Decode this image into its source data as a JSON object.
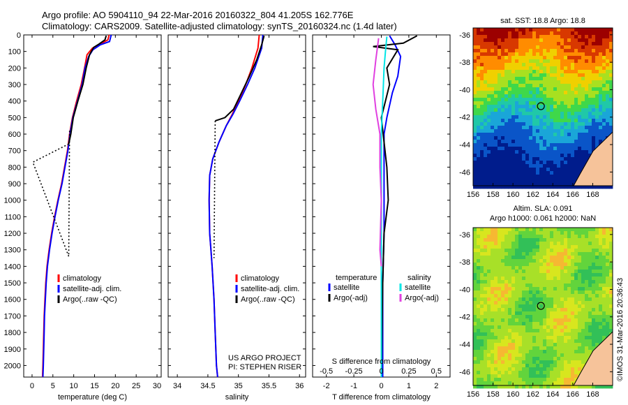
{
  "header": {
    "line1": "Argo profile: AO 5904110_94 22-Mar-2016 20160322_804 41.205S 162.776E",
    "line2": "Climatology: CARS2009. Satellite-adjusted climatology: synTS_20160324.nc (1.4d later)"
  },
  "credit": "©IMOS 31-Mar-2016 20:36:43",
  "chart_data": [
    {
      "type": "line",
      "id": "temperature",
      "xlabel": "temperature (deg C)",
      "xlim": [
        -2,
        31
      ],
      "ylim": [
        2070,
        0
      ],
      "xticks": [
        0,
        5,
        10,
        15,
        20,
        25,
        30
      ],
      "yticks": [
        0,
        100,
        200,
        300,
        400,
        500,
        600,
        700,
        800,
        900,
        1000,
        1100,
        1200,
        1300,
        1400,
        1500,
        1600,
        1700,
        1800,
        1900,
        2000
      ],
      "legend": [
        "climatology",
        "satellite-adj. clim.",
        "Argo(..raw -QC)"
      ],
      "legend_colors": [
        "#ff0000",
        "#0000ff",
        "#000000"
      ],
      "legend_position": "lower-right",
      "series": [
        {
          "name": "climatology",
          "color": "#ff0000",
          "points": [
            [
              18.5,
              0
            ],
            [
              18.2,
              30
            ],
            [
              16.8,
              50
            ],
            [
              14.5,
              80
            ],
            [
              13.2,
              120
            ],
            [
              12.6,
              200
            ],
            [
              11.8,
              300
            ],
            [
              10.7,
              400
            ],
            [
              9.7,
              500
            ],
            [
              9.0,
              600
            ],
            [
              8.5,
              700
            ],
            [
              7.8,
              800
            ],
            [
              7.1,
              900
            ],
            [
              6.2,
              1000
            ],
            [
              5.4,
              1100
            ],
            [
              4.7,
              1200
            ],
            [
              4.1,
              1300
            ],
            [
              3.6,
              1400
            ],
            [
              3.3,
              1500
            ],
            [
              3.1,
              1600
            ],
            [
              2.9,
              1700
            ],
            [
              2.8,
              1800
            ],
            [
              2.7,
              1900
            ],
            [
              2.6,
              2000
            ],
            [
              2.5,
              2070
            ]
          ]
        },
        {
          "name": "satellite-adj. clim.",
          "color": "#0000ff",
          "points": [
            [
              19.0,
              0
            ],
            [
              18.6,
              40
            ],
            [
              16.4,
              60
            ],
            [
              14.6,
              90
            ],
            [
              13.6,
              130
            ],
            [
              12.7,
              200
            ],
            [
              12.0,
              300
            ],
            [
              10.9,
              400
            ],
            [
              9.8,
              500
            ],
            [
              9.1,
              600
            ],
            [
              8.6,
              700
            ],
            [
              7.9,
              800
            ],
            [
              7.2,
              900
            ],
            [
              6.3,
              1000
            ],
            [
              5.5,
              1100
            ],
            [
              4.8,
              1200
            ],
            [
              4.2,
              1300
            ],
            [
              3.7,
              1400
            ],
            [
              3.4,
              1500
            ],
            [
              3.2,
              1600
            ],
            [
              3.0,
              1700
            ],
            [
              2.9,
              1800
            ],
            [
              2.8,
              1900
            ],
            [
              2.7,
              2000
            ],
            [
              2.6,
              2070
            ]
          ]
        },
        {
          "name": "Argo(..raw -QC)",
          "color": "#000000",
          "points": [
            [
              17.8,
              5
            ],
            [
              17.5,
              30
            ],
            [
              16.1,
              55
            ],
            [
              14.8,
              75
            ],
            [
              13.8,
              120
            ],
            [
              13.0,
              200
            ],
            [
              12.2,
              300
            ],
            [
              11.0,
              400
            ],
            [
              9.9,
              500
            ],
            [
              9.3,
              600
            ],
            [
              8.8,
              660
            ]
          ]
        },
        {
          "name": "",
          "color": "#000000",
          "dashed": true,
          "points": [
            [
              8.8,
              660
            ],
            [
              0.2,
              770
            ],
            [
              8.8,
              1340
            ],
            [
              9.0,
              580
            ]
          ]
        }
      ]
    },
    {
      "type": "line",
      "id": "salinity",
      "xlabel": "salinity",
      "xlim": [
        33.85,
        36.1
      ],
      "ylim": [
        2070,
        0
      ],
      "xticks": [
        34,
        34.5,
        35,
        35.5,
        36
      ],
      "legend": [
        "climatology",
        "satellite-adj. clim.",
        "Argo(..raw -QC)"
      ],
      "legend_colors": [
        "#ff0000",
        "#0000ff",
        "#000000"
      ],
      "legend_position": "lower-right",
      "annotation": [
        "US ARGO PROJECT",
        "PI: STEPHEN RISER"
      ],
      "series": [
        {
          "name": "climatology",
          "color": "#ff0000",
          "points": [
            [
              35.34,
              0
            ],
            [
              35.32,
              80
            ],
            [
              35.22,
              200
            ],
            [
              35.12,
              300
            ],
            [
              35.0,
              400
            ],
            [
              34.9,
              480
            ],
            [
              34.8,
              550
            ],
            [
              34.68,
              650
            ],
            [
              34.58,
              750
            ],
            [
              34.53,
              850
            ],
            [
              34.52,
              1000
            ],
            [
              34.53,
              1200
            ],
            [
              34.55,
              1300
            ],
            [
              34.57,
              1400
            ],
            [
              34.6,
              1600
            ],
            [
              34.62,
              1800
            ],
            [
              34.64,
              2000
            ],
            [
              34.66,
              2070
            ]
          ]
        },
        {
          "name": "satellite-adj. clim.",
          "color": "#0000ff",
          "points": [
            [
              35.4,
              0
            ],
            [
              35.38,
              80
            ],
            [
              35.27,
              200
            ],
            [
              35.15,
              300
            ],
            [
              35.02,
              400
            ],
            [
              34.91,
              480
            ],
            [
              34.8,
              550
            ],
            [
              34.68,
              650
            ],
            [
              34.58,
              750
            ],
            [
              34.53,
              850
            ],
            [
              34.52,
              1000
            ],
            [
              34.53,
              1200
            ],
            [
              34.55,
              1300
            ],
            [
              34.57,
              1400
            ],
            [
              34.6,
              1600
            ],
            [
              34.62,
              1800
            ],
            [
              34.64,
              2000
            ],
            [
              34.66,
              2070
            ]
          ]
        },
        {
          "name": "Argo(..raw -QC)",
          "color": "#000000",
          "points": [
            [
              35.42,
              5
            ],
            [
              35.38,
              60
            ],
            [
              35.3,
              150
            ],
            [
              35.18,
              250
            ],
            [
              35.05,
              350
            ],
            [
              34.92,
              450
            ],
            [
              34.78,
              500
            ],
            [
              34.62,
              520
            ]
          ]
        },
        {
          "name": "",
          "color": "#000000",
          "dashed": true,
          "points": [
            [
              34.62,
              520
            ],
            [
              34.6,
              1350
            ]
          ]
        }
      ]
    },
    {
      "type": "line",
      "id": "difference",
      "xlabel": "T difference from climatology",
      "xlabel2": "S difference from climatology",
      "xlim": [
        -2.5,
        2.5
      ],
      "ylim": [
        2070,
        0
      ],
      "xticks": [
        -2,
        -1,
        0,
        1,
        2
      ],
      "xticks2": [
        -0.5,
        -0.25,
        0,
        0.25,
        0.5
      ],
      "legend_left": {
        "title": "temperature",
        "items": [
          "satellite",
          "Argo(-adj)"
        ],
        "colors": [
          "#0000ff",
          "#000000"
        ]
      },
      "legend_right": {
        "title": "salinity",
        "items": [
          "satellite",
          "Argo(-adj)"
        ],
        "colors": [
          "#00e6e6",
          "#e040e0"
        ]
      },
      "series": [
        {
          "name": "temperature satellite",
          "color": "#0000ff",
          "points": [
            [
              0.3,
              5
            ],
            [
              0.5,
              60
            ],
            [
              0.7,
              130
            ],
            [
              0.6,
              250
            ],
            [
              0.4,
              350
            ],
            [
              0.2,
              500
            ],
            [
              0.1,
              600
            ],
            [
              0.1,
              900
            ],
            [
              0.1,
              1200
            ],
            [
              0.05,
              1500
            ],
            [
              0.05,
              2070
            ]
          ]
        },
        {
          "name": "temperature Argo(-adj)",
          "color": "#000000",
          "points": [
            [
              1.3,
              5
            ],
            [
              0.8,
              50
            ],
            [
              -0.3,
              70
            ],
            [
              0.6,
              90
            ],
            [
              0.2,
              200
            ],
            [
              0.3,
              300
            ],
            [
              0.0,
              500
            ],
            [
              0.2,
              800
            ],
            [
              0.25,
              1000
            ],
            [
              0.1,
              1200
            ],
            [
              0.05,
              1500
            ],
            [
              0.0,
              2070
            ]
          ]
        },
        {
          "name": "salinity satellite",
          "color": "#00e6e6",
          "points": [
            [
              0.2,
              10
            ],
            [
              0.15,
              100
            ],
            [
              0.1,
              200
            ],
            [
              0.05,
              400
            ],
            [
              0.0,
              600
            ],
            [
              0.0,
              2070
            ]
          ]
        },
        {
          "name": "salinity Argo(-adj)",
          "color": "#e040e0",
          "points": [
            [
              -0.1,
              20
            ],
            [
              -0.2,
              150
            ],
            [
              -0.3,
              300
            ],
            [
              -0.2,
              450
            ],
            [
              -0.05,
              600
            ],
            [
              -0.05,
              800
            ],
            [
              0.0,
              1000
            ],
            [
              -0.05,
              1300
            ],
            [
              0.0,
              1400
            ]
          ]
        }
      ]
    },
    {
      "type": "heatmap",
      "id": "sst",
      "title": "sat. SST: 18.8 Argo: 18.8",
      "xlim": [
        156,
        170
      ],
      "ylim": [
        -47,
        -35.5
      ],
      "xticks": [
        156,
        158,
        160,
        162,
        164,
        166,
        168
      ],
      "yticks": [
        -36,
        -38,
        -40,
        -42,
        -44,
        -46
      ],
      "marker": [
        162.8,
        -41.2
      ]
    },
    {
      "type": "heatmap",
      "id": "sla",
      "title": "Altim. SLA: 0.091",
      "subtitle": "Argo h1000: 0.061 h2000: NaN",
      "xlim": [
        156,
        170
      ],
      "ylim": [
        -47,
        -35.5
      ],
      "xticks": [
        156,
        158,
        160,
        162,
        164,
        166,
        168
      ],
      "yticks": [
        -36,
        -38,
        -40,
        -42,
        -44,
        -46
      ],
      "marker": [
        162.8,
        -41.2
      ]
    }
  ]
}
